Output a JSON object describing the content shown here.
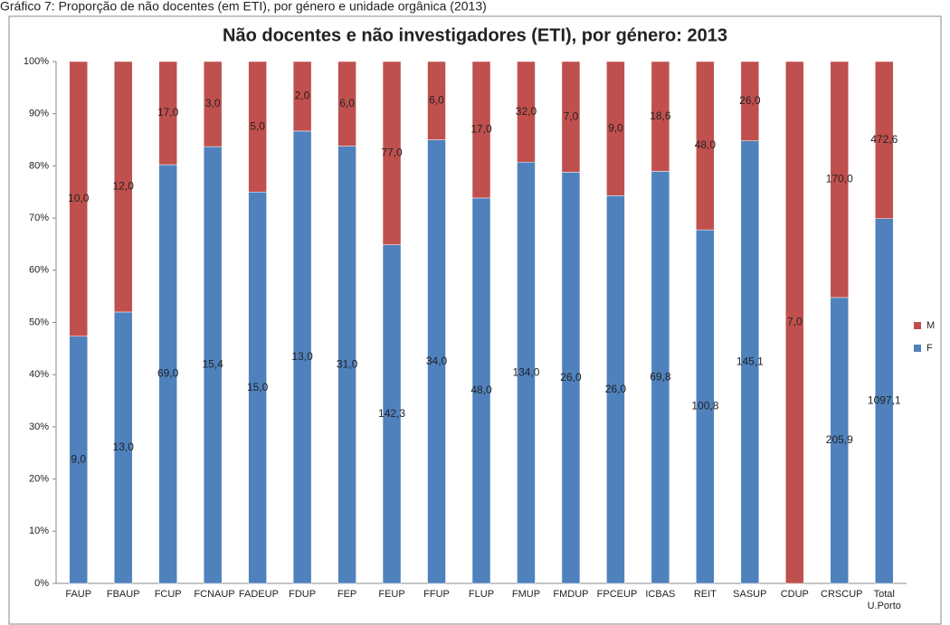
{
  "caption": "Gráfico 7: Proporção de não docentes (em ETI), por género e unidade orgânica (2013)",
  "chart_data": {
    "type": "stacked_percent_bar",
    "title": "Não docentes e não investigadores (ETI), por género: 2013",
    "categories": [
      "FAUP",
      "FBAUP",
      "FCUP",
      "FCNAUP",
      "FADEUP",
      "FDUP",
      "FEP",
      "FEUP",
      "FFUP",
      "FLUP",
      "FMUP",
      "FMDUP",
      "FPCEUP",
      "ICBAS",
      "REIT",
      "SASUP",
      "CDUP",
      "CRSCUP",
      "Total U.Porto"
    ],
    "series": [
      {
        "name": "F",
        "color": "#4f81bd",
        "values": [
          9,
          13,
          69,
          15.4,
          15,
          13,
          31,
          142.3,
          34,
          48,
          134,
          26,
          26,
          69.8,
          100.8,
          145.1,
          0,
          205.9,
          1097.1
        ],
        "value_labels": [
          "9,0",
          "13,0",
          "69,0",
          "15,4",
          "15,0",
          "13,0",
          "31,0",
          "142,3",
          "34,0",
          "48,0",
          "134,0",
          "26,0",
          "26,0",
          "69,8",
          "100,8",
          "145,1",
          null,
          "205,9",
          "1097,1"
        ]
      },
      {
        "name": "M",
        "color": "#c0504d",
        "values": [
          10,
          12,
          17,
          3,
          5,
          2,
          6,
          77,
          6,
          17,
          32,
          7,
          9,
          18.6,
          48,
          26,
          7,
          170,
          472.6
        ],
        "value_labels": [
          "10,0",
          "12,0",
          "17,0",
          "3,0",
          "5,0",
          "2,0",
          "6,0",
          "77,0",
          "6,0",
          "17,0",
          "32,0",
          "7,0",
          "9,0",
          "18,6",
          "48,0",
          "26,0",
          "7,0",
          "170,0",
          "472,6"
        ]
      }
    ],
    "ylim": [
      0,
      100
    ],
    "yticks": [
      {
        "value": 0,
        "label": "0%"
      },
      {
        "value": 10,
        "label": "10%"
      },
      {
        "value": 20,
        "label": "20%"
      },
      {
        "value": 30,
        "label": "30%"
      },
      {
        "value": 40,
        "label": "40%"
      },
      {
        "value": 50,
        "label": "50%"
      },
      {
        "value": 60,
        "label": "60%"
      },
      {
        "value": 70,
        "label": "70%"
      },
      {
        "value": 80,
        "label": "80%"
      },
      {
        "value": 90,
        "label": "90%"
      },
      {
        "value": 100,
        "label": "100%"
      }
    ],
    "grid": false,
    "legend": "right"
  }
}
